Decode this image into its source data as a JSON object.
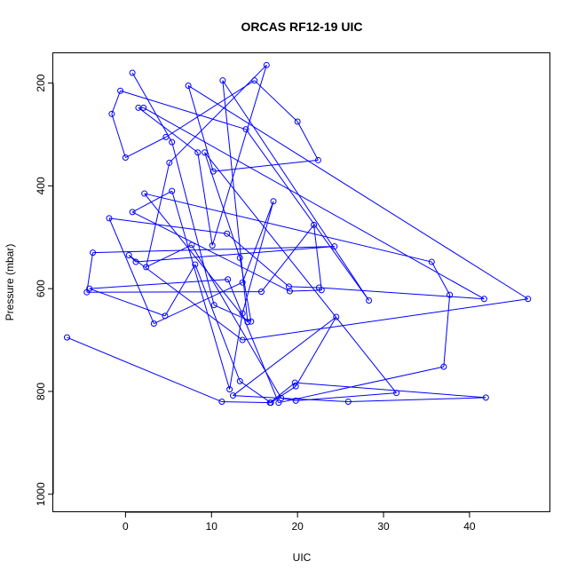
{
  "chart_data": {
    "type": "line",
    "title": "ORCAS RF12-19 UIC",
    "xlabel": "UIC",
    "ylabel": "Pressure (mbar)",
    "xlim": [
      -8.4,
      49.4
    ],
    "ylim": [
      1035,
      142
    ],
    "y_reversed": true,
    "x_ticks": [
      0,
      10,
      20,
      30,
      40
    ],
    "y_ticks": [
      200,
      400,
      600,
      800,
      1000
    ],
    "grid": false,
    "legend": "none",
    "series_color": "#0000ff",
    "series": [
      {
        "marker": "open-circle",
        "x": [
          -6.8,
          11.2,
          16.8,
          19.7,
          41.9,
          25.9,
          12.5,
          24.5,
          19.8,
          16.9,
          13.3,
          8.1,
          4.6,
          -4.2,
          11.9,
          17.8,
          37.0,
          37.7,
          35.6,
          2.2,
          14.2,
          11.3,
          28.3,
          14.0,
          -0.6,
          -1.6,
          0.0,
          4.7,
          15.0,
          20.0,
          22.4,
          10.2,
          7.3,
          46.8,
          13.6,
          0.4,
          1.2,
          24.3,
          -3.8,
          -4.5,
          15.8,
          21.9,
          22.8,
          19.1,
          0.8,
          5.4,
          12.1,
          13.6,
          17.2,
          13.6,
          3.3,
          -1.9,
          11.8,
          19.0,
          22.5,
          41.7,
          2.1,
          1.5,
          8.4,
          10.1,
          16.4,
          5.1,
          2.4,
          7.7,
          18.1,
          19.8,
          31.5,
          9.2,
          13.3,
          14.6,
          10.3,
          5.4,
          0.8
        ],
        "y": [
          695,
          820,
          822,
          783,
          812,
          820,
          808,
          655,
          790,
          822,
          780,
          553,
          653,
          600,
          582,
          822,
          752,
          612,
          548,
          415,
          665,
          195,
          623,
          290,
          215,
          260,
          345,
          305,
          195,
          275,
          350,
          372,
          205,
          620,
          700,
          535,
          548,
          518,
          530,
          607,
          606,
          476,
          603,
          605,
          451,
          410,
          796,
          648,
          430,
          588,
          668,
          463,
          493,
          596,
          598,
          620,
          248,
          248,
          335,
          516,
          165,
          355,
          558,
          515,
          813,
          818,
          803,
          335,
          540,
          664,
          632,
          315,
          180
        ]
      }
    ]
  }
}
